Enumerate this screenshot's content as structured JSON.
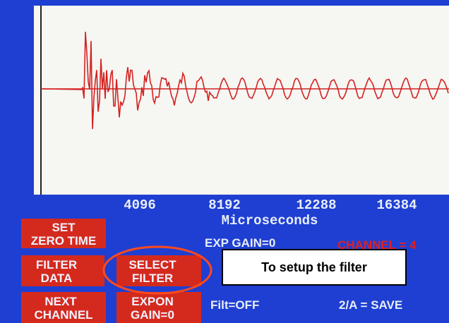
{
  "plot": {
    "x_labels": [
      4096,
      8192,
      12288,
      16384
    ],
    "x_axis_title": "Microseconds"
  },
  "buttons": [
    {
      "lines": [
        "SET",
        "ZERO TIME"
      ]
    },
    {
      "lines": [
        "FILTER",
        "DATA"
      ]
    },
    {
      "lines": [
        "NEXT",
        "CHANNEL"
      ]
    },
    {
      "lines": [
        "SELECT",
        "FILTER"
      ]
    },
    {
      "lines": [
        "EXPON",
        "GAIN=0"
      ]
    }
  ],
  "status": {
    "exp_gain": "EXP  GAIN=0",
    "channel": "CHANNEL = 4",
    "filter": "Filt=OFF",
    "save": "2/A = SAVE"
  },
  "callout": "To setup the filter"
}
